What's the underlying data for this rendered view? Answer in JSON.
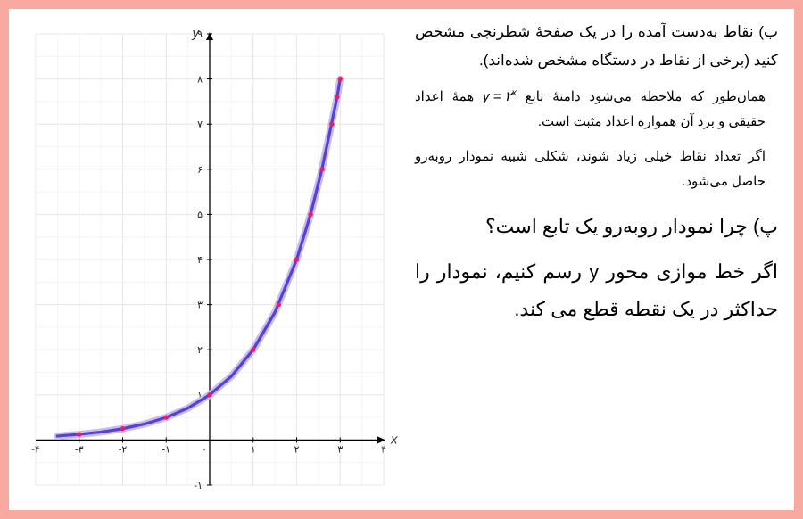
{
  "text": {
    "prompt_b": "ب) نقاط به‌دست آمده را در یک صفحهٔ شطرنجی مشخص کنید (برخی از نقاط در دستگاه مشخص شده‌اند).",
    "note_pre": "همان‌طور که ملاحظه می‌شود دامنهٔ تابع ",
    "formula_y": "y",
    "formula_eq": " = ۲",
    "formula_exp": "x",
    "note_post": " همهٔ اعداد حقیقی و برد آن همواره اعداد مثبت است.",
    "note_2": "اگر تعداد نقاط خیلی زیاد شوند، شکلی شبیه نمودار روبه‌رو حاصل می‌شود.",
    "prompt_c": "پ) چرا نمودار روبه‌رو یک تابع است؟",
    "answer": "اگر خط موازی محور y رسم کنیم، نمودار را حداکثر در یک نقطه قطع می کند."
  },
  "chart": {
    "type": "line",
    "x_label": "x",
    "y_label": "y",
    "xlim": [
      -4,
      4
    ],
    "ylim": [
      -1,
      9
    ],
    "xtick_labels": [
      "-۴",
      "-۳",
      "-۲",
      "-۱",
      "۰",
      "۱",
      "۲",
      "۳",
      "۴"
    ],
    "xtick_vals": [
      -4,
      -3,
      -2,
      -1,
      0,
      1,
      2,
      3,
      4
    ],
    "ytick_labels": [
      "-۱",
      "۱",
      "۲",
      "۳",
      "۴",
      "۵",
      "۶",
      "۷",
      "۸",
      "۹"
    ],
    "ytick_vals": [
      -1,
      1,
      2,
      3,
      4,
      5,
      6,
      7,
      8,
      9
    ],
    "grid_color": "#e8e8e8",
    "subgrid_color": "#f4f4f4",
    "axis_color": "#000000",
    "background_color": "#ffffff",
    "curve": {
      "color": "#5a3fd6",
      "glow_color": "#c8bdf0",
      "width": 3.2,
      "glow_width": 8,
      "points_x": [
        -3.5,
        -3,
        -2.5,
        -2,
        -1.5,
        -1,
        -0.5,
        0,
        0.5,
        1,
        1.5,
        2,
        2.32,
        2.58,
        2.8,
        2.93,
        3
      ],
      "points_y": [
        0.088,
        0.125,
        0.177,
        0.25,
        0.354,
        0.5,
        0.707,
        1,
        1.414,
        2,
        2.828,
        4,
        5,
        6,
        7,
        7.6,
        8
      ]
    },
    "markers": {
      "fill": "#e91e63",
      "stroke": "#e91e63",
      "radius": 2.2,
      "points": [
        [
          -3,
          0.125
        ],
        [
          -2,
          0.25
        ],
        [
          -1,
          0.5
        ],
        [
          0,
          1
        ],
        [
          1,
          2
        ],
        [
          1.585,
          3
        ],
        [
          2,
          4
        ],
        [
          2.32,
          5
        ],
        [
          2.585,
          6
        ],
        [
          2.807,
          7
        ],
        [
          2.93,
          7.6
        ],
        [
          3,
          8
        ]
      ]
    },
    "tick_font_size": 11,
    "label_font_size": 15
  }
}
